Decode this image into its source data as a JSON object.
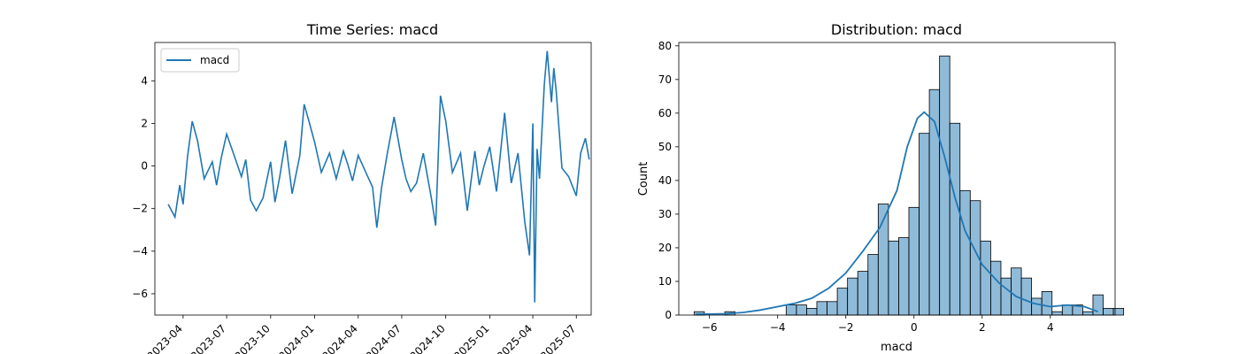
{
  "chart_data": [
    {
      "type": "line",
      "title": "Time Series: macd",
      "xlabel": "",
      "ylabel": "",
      "legend": {
        "placement": "top-left",
        "entries": [
          "macd"
        ]
      },
      "series_color": "#1f77b4",
      "x_ticks": [
        "2023-04",
        "2023-07",
        "2023-10",
        "2024-01",
        "2024-04",
        "2024-07",
        "2024-10",
        "2025-01",
        "2025-04",
        "2025-07"
      ],
      "x_range": [
        "2023-02-01",
        "2025-08-01"
      ],
      "y_ticks": [
        -6,
        -4,
        -2,
        0,
        2,
        4
      ],
      "ylim": [
        -7,
        5.8
      ],
      "series": [
        {
          "name": "macd",
          "x": [
            "2023-03-01",
            "2023-03-15",
            "2023-03-25",
            "2023-04-01",
            "2023-04-10",
            "2023-04-20",
            "2023-05-01",
            "2023-05-15",
            "2023-06-01",
            "2023-06-10",
            "2023-06-20",
            "2023-07-01",
            "2023-07-15",
            "2023-08-01",
            "2023-08-10",
            "2023-08-20",
            "2023-09-01",
            "2023-09-15",
            "2023-10-01",
            "2023-10-10",
            "2023-10-20",
            "2023-11-01",
            "2023-11-15",
            "2023-12-01",
            "2023-12-10",
            "2023-12-20",
            "2024-01-01",
            "2024-01-15",
            "2024-02-01",
            "2024-02-15",
            "2024-03-01",
            "2024-03-10",
            "2024-03-20",
            "2024-04-01",
            "2024-04-15",
            "2024-05-01",
            "2024-05-10",
            "2024-05-20",
            "2024-06-01",
            "2024-06-15",
            "2024-07-01",
            "2024-07-10",
            "2024-07-20",
            "2024-08-01",
            "2024-08-15",
            "2024-09-01",
            "2024-09-10",
            "2024-09-20",
            "2024-10-01",
            "2024-10-15",
            "2024-11-01",
            "2024-11-15",
            "2024-12-01",
            "2024-12-10",
            "2024-12-20",
            "2025-01-01",
            "2025-01-15",
            "2025-02-01",
            "2025-02-15",
            "2025-03-01",
            "2025-03-15",
            "2025-03-25",
            "2025-04-01",
            "2025-04-05",
            "2025-04-10",
            "2025-04-15",
            "2025-04-25",
            "2025-05-01",
            "2025-05-10",
            "2025-05-15",
            "2025-05-20",
            "2025-06-01",
            "2025-06-15",
            "2025-07-01",
            "2025-07-10",
            "2025-07-20",
            "2025-07-28"
          ],
          "values": [
            -1.8,
            -2.4,
            -0.9,
            -1.8,
            0.4,
            2.1,
            1.2,
            -0.6,
            0.2,
            -0.9,
            0.4,
            1.5,
            0.6,
            -0.5,
            0.3,
            -1.6,
            -2.1,
            -1.5,
            0.2,
            -1.7,
            -0.5,
            1.2,
            -1.3,
            0.5,
            2.9,
            2.1,
            1.1,
            -0.3,
            0.6,
            -0.6,
            0.7,
            0.1,
            -0.7,
            0.5,
            -0.2,
            -1.0,
            -2.9,
            -1.0,
            0.6,
            2.3,
            0.3,
            -0.6,
            -1.2,
            -0.8,
            0.6,
            -1.5,
            -2.8,
            3.3,
            2.1,
            -0.3,
            0.6,
            -2.1,
            0.7,
            -0.9,
            0.0,
            0.9,
            -1.2,
            2.5,
            -0.8,
            0.6,
            -2.6,
            -4.2,
            2.0,
            -6.4,
            0.8,
            -0.6,
            3.8,
            5.4,
            3.0,
            4.6,
            3.5,
            -0.1,
            -0.5,
            -1.4,
            0.6,
            1.3,
            0.3
          ]
        }
      ]
    },
    {
      "type": "bar",
      "title": "Distribution: macd",
      "xlabel": "macd",
      "ylabel": "Count",
      "bar_color": "#1f77b4",
      "kde": true,
      "x_ticks": [
        -6,
        -4,
        -2,
        0,
        2,
        4
      ],
      "y_ticks": [
        0,
        10,
        20,
        30,
        40,
        50,
        60,
        70,
        80
      ],
      "xlim": [
        -6.9,
        5.9
      ],
      "ylim": [
        0,
        81
      ],
      "bin_start": -6.45,
      "bin_width": 0.3,
      "counts": [
        1,
        0,
        0,
        1,
        0,
        0,
        0,
        0,
        0,
        3,
        3,
        2,
        4,
        4,
        8,
        11,
        13,
        18,
        33,
        22,
        23,
        32,
        54,
        67,
        77,
        57,
        37,
        34,
        22,
        16,
        11,
        14,
        11,
        5,
        7,
        1,
        3,
        3,
        1,
        6,
        2,
        2
      ],
      "kde_x": [
        -6.4,
        -5.5,
        -5.0,
        -4.5,
        -4.0,
        -3.5,
        -3.0,
        -2.5,
        -2.0,
        -1.5,
        -1.0,
        -0.5,
        -0.2,
        0.1,
        0.3,
        0.6,
        0.9,
        1.2,
        1.5,
        2.0,
        2.5,
        3.0,
        3.5,
        4.0,
        4.5,
        5.0,
        5.4
      ],
      "kde_y": [
        0.2,
        0.4,
        0.8,
        1.5,
        2.5,
        3.5,
        5.0,
        8.0,
        12.5,
        19.0,
        26.0,
        37.0,
        50.0,
        58.5,
        60.3,
        57.5,
        47.0,
        35.0,
        25.0,
        15.0,
        9.5,
        5.5,
        3.5,
        2.5,
        3.0,
        2.5,
        1.0
      ]
    }
  ]
}
